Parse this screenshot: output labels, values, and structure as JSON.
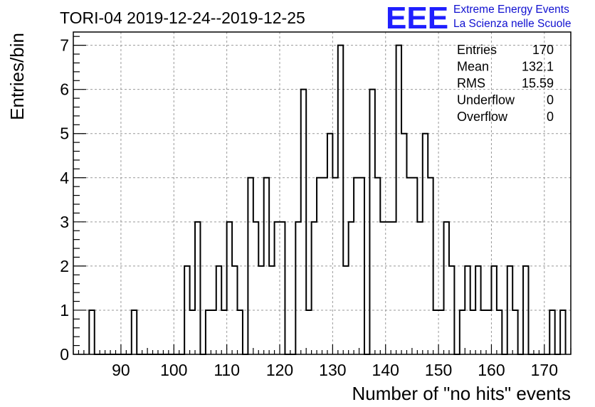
{
  "chart_data": {
    "type": "bar",
    "title": "TORI-04 2019-12-24--2019-12-25",
    "xlabel": "Number of \"no hits\" events",
    "ylabel": "Entries/bin",
    "xlim": [
      81,
      175
    ],
    "ylim": [
      0,
      7.3
    ],
    "bin_width": 1,
    "bin_start": 84,
    "values": [
      1,
      0,
      0,
      0,
      0,
      0,
      0,
      0,
      1,
      0,
      0,
      0,
      0,
      0,
      0,
      0,
      0,
      0,
      2,
      1,
      3,
      0,
      1,
      1,
      2,
      1,
      3,
      2,
      1,
      0,
      4,
      3,
      2,
      4,
      2,
      3,
      3,
      0,
      0,
      3,
      6,
      1,
      3,
      4,
      4,
      5,
      4,
      7,
      2,
      3,
      4,
      4,
      0,
      6,
      4,
      3,
      3,
      3,
      7,
      5,
      4,
      4,
      3,
      5,
      4,
      1,
      1,
      3,
      2,
      0,
      1,
      2,
      1,
      2,
      1,
      1,
      2,
      1,
      0,
      2,
      1,
      0,
      2,
      0,
      0,
      0,
      0,
      1,
      0,
      1
    ],
    "xticks": [
      90,
      100,
      110,
      120,
      130,
      140,
      150,
      160,
      170
    ],
    "yticks": [
      0,
      1,
      2,
      3,
      4,
      5,
      6,
      7
    ],
    "grid": true,
    "stats": [
      {
        "label": "Entries",
        "value": "170"
      },
      {
        "label": "Mean",
        "value": "132.1"
      },
      {
        "label": "RMS",
        "value": "15.59"
      },
      {
        "label": "Underflow",
        "value": "0"
      },
      {
        "label": "Overflow",
        "value": "0"
      }
    ],
    "colors": {
      "line": "#000000",
      "grid": "#999999",
      "logo": "#1f1fff",
      "logo_text": "#1010d0"
    }
  },
  "logo": {
    "mark": "EEE",
    "line1": "Extreme Energy Events",
    "line2": "La Scienza nelle Scuole"
  }
}
